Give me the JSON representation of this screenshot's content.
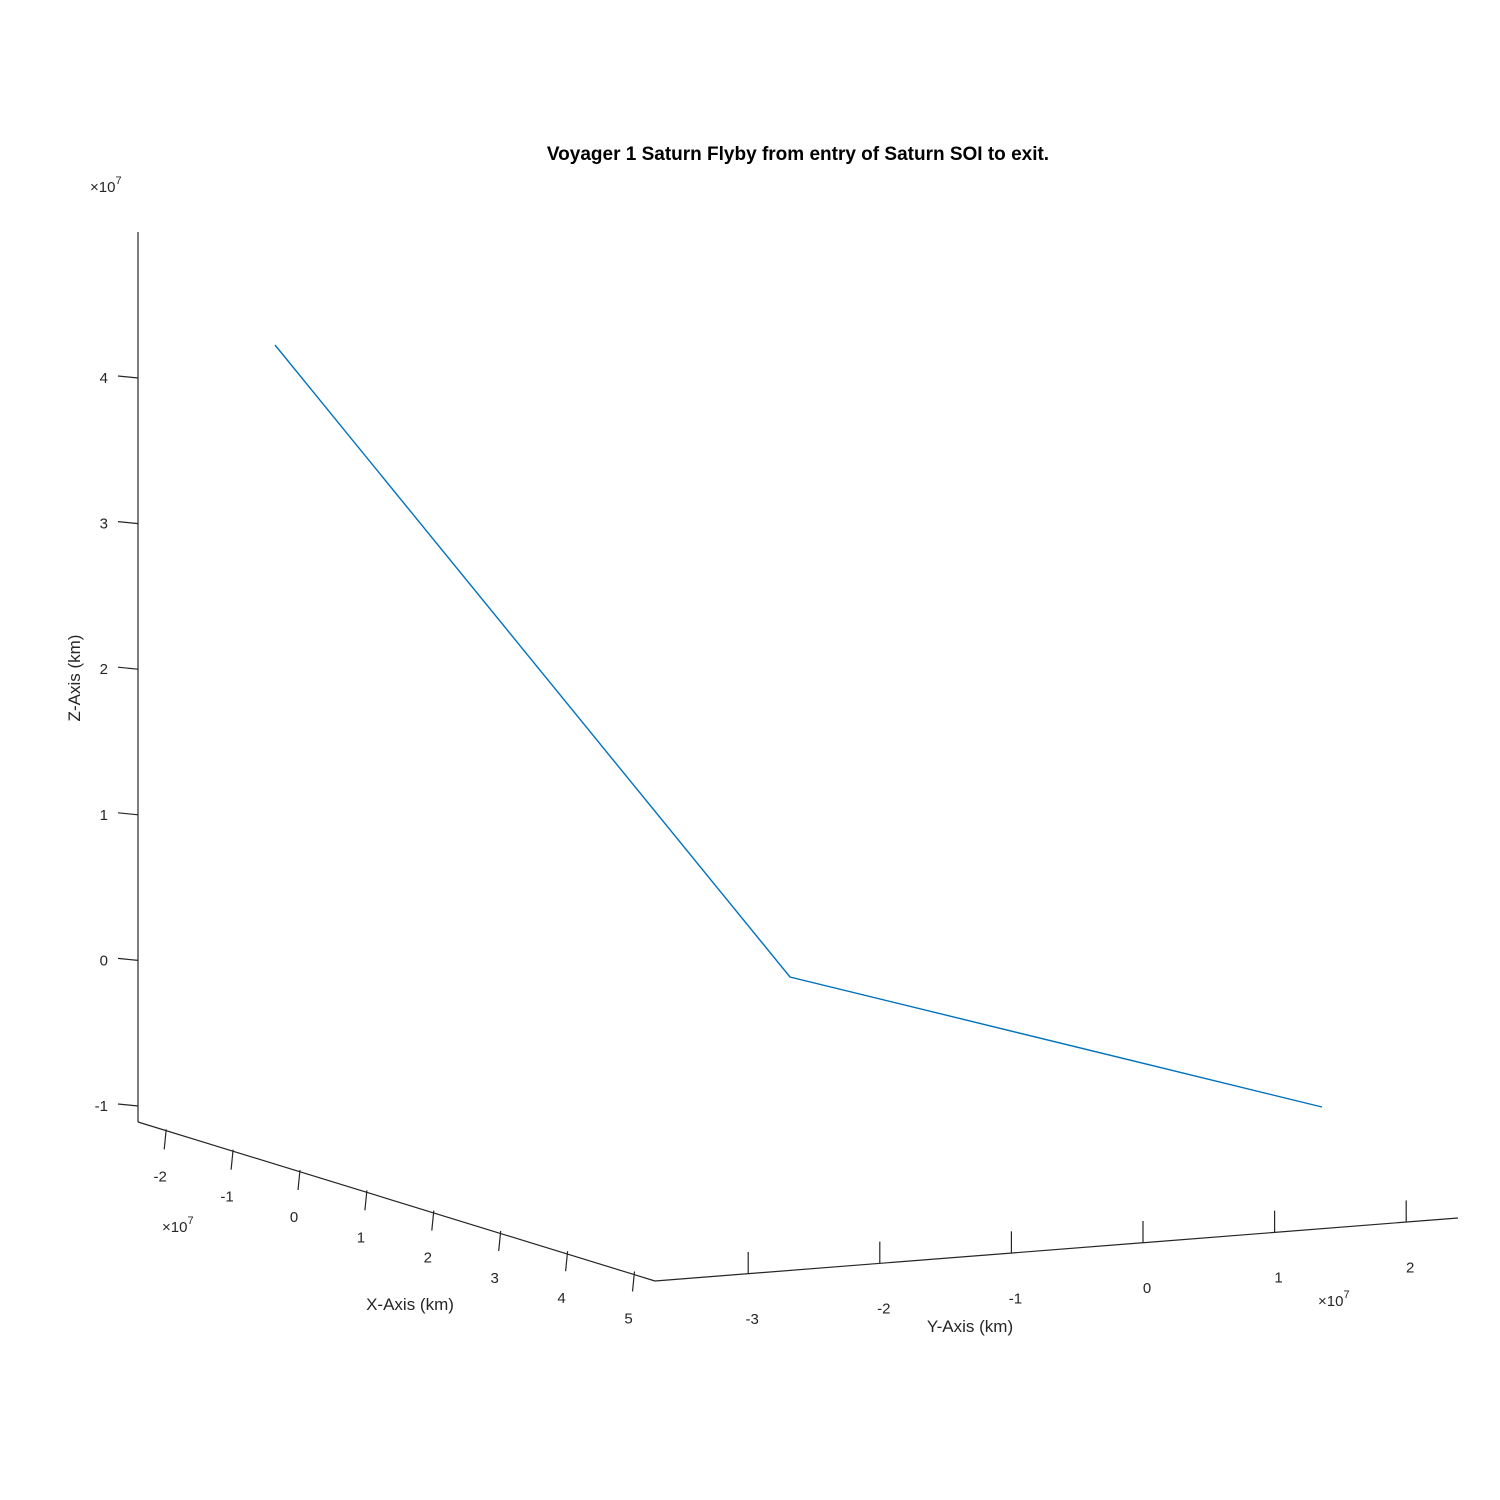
{
  "chart_data": {
    "type": "line",
    "projection": "3d",
    "title": "Voyager 1 Saturn Flyby from entry of Saturn SOI to exit.",
    "xlabel": "X-Axis (km)",
    "ylabel": "Y-Axis (km)",
    "zlabel": "Z-Axis (km)",
    "x_exponent": "7",
    "y_exponent": "7",
    "z_exponent": "7",
    "exponent_prefix": "×10",
    "xlim": [
      -2.5,
      5.2
    ],
    "ylim": [
      -4.0,
      2.4
    ],
    "zlim": [
      -1.1,
      5.0
    ],
    "x_ticks": [
      {
        "value": -2,
        "label": "-2"
      },
      {
        "value": -1,
        "label": "-1"
      },
      {
        "value": 0,
        "label": "0"
      },
      {
        "value": 1,
        "label": "1"
      },
      {
        "value": 2,
        "label": "2"
      },
      {
        "value": 3,
        "label": "3"
      },
      {
        "value": 4,
        "label": "4"
      },
      {
        "value": 5,
        "label": "5"
      }
    ],
    "y_ticks": [
      {
        "value": -3,
        "label": "-3"
      },
      {
        "value": -2,
        "label": "-2"
      },
      {
        "value": -1,
        "label": "-1"
      },
      {
        "value": 0,
        "label": "0"
      },
      {
        "value": 1,
        "label": "1"
      },
      {
        "value": 2,
        "label": "2"
      }
    ],
    "z_ticks": [
      {
        "value": -1,
        "label": "-1"
      },
      {
        "value": 0,
        "label": "0"
      },
      {
        "value": 1,
        "label": "1"
      },
      {
        "value": 2,
        "label": "2"
      },
      {
        "value": 3,
        "label": "3"
      },
      {
        "value": 4,
        "label": "4"
      }
    ],
    "grid": false,
    "series": [
      {
        "color": "#0072BD",
        "points": [
          {
            "x": -1.0,
            "y": -1.8,
            "z": 4.5
          },
          {
            "x": 0.0,
            "y": 0.0,
            "z": 0.0
          },
          {
            "x": 3.0,
            "y": 1.9,
            "z": -0.2
          }
        ]
      }
    ]
  }
}
